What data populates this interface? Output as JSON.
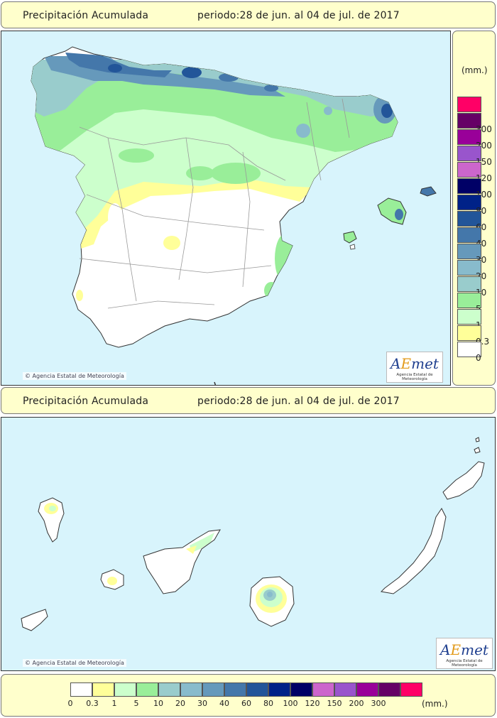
{
  "header": {
    "title": "Precipitación Acumulada",
    "period": "periodo:28 de jun. al 04 de jul. de 2017"
  },
  "credits": {
    "copyright": "© Agencia Estatal de Meteorología",
    "logo_text": "AEmet",
    "logo_subtitle": "Agencia Estatal de Meteorología"
  },
  "legend": {
    "unit": "(mm.)",
    "classes": [
      {
        "label": "0",
        "color": "#ffffff"
      },
      {
        "label": "0.3",
        "color": "#ffff99"
      },
      {
        "label": "1",
        "color": "#ccffcc"
      },
      {
        "label": "5",
        "color": "#99ee99"
      },
      {
        "label": "10",
        "color": "#99cccc"
      },
      {
        "label": "20",
        "color": "#88bbcc"
      },
      {
        "label": "30",
        "color": "#6699bb"
      },
      {
        "label": "40",
        "color": "#4477aa"
      },
      {
        "label": "60",
        "color": "#225599"
      },
      {
        "label": "80",
        "color": "#002288"
      },
      {
        "label": "100",
        "color": "#000066"
      },
      {
        "label": "120",
        "color": "#cc66cc"
      },
      {
        "label": "150",
        "color": "#9955cc"
      },
      {
        "label": "200",
        "color": "#990099"
      },
      {
        "label": "300",
        "color": "#660066"
      },
      {
        "label": "",
        "color": "#ff0066"
      }
    ]
  },
  "colors": {
    "sea": "#d8f4fc",
    "panel": "#ffffcc",
    "border_lines": "#999999"
  }
}
